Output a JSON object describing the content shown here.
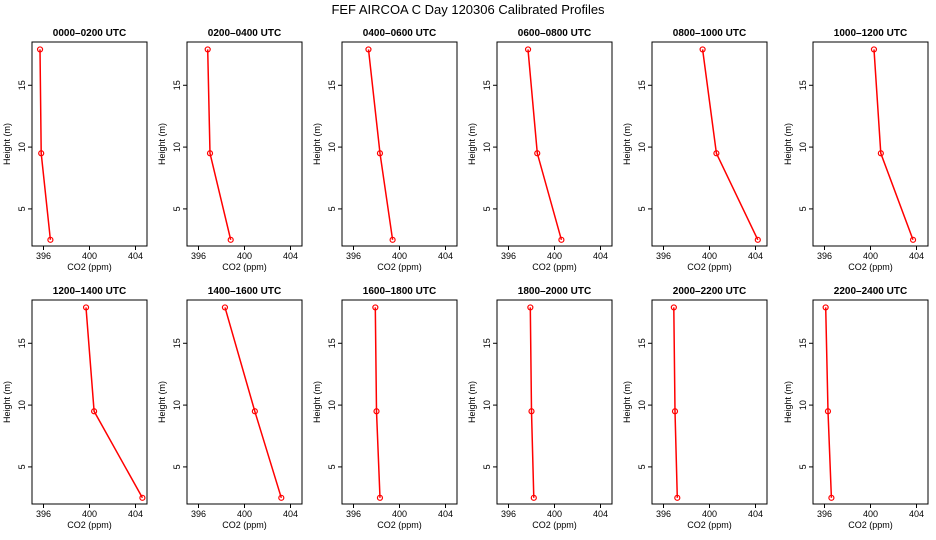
{
  "figure": {
    "title": "FEF AIRCOA C  Day 120306  Calibrated Profiles"
  },
  "chart_data": [
    {
      "type": "line",
      "title": "0000–0200 UTC",
      "xlabel": "CO2 (ppm)",
      "ylabel": "Height (m)",
      "xlim": [
        395,
        405
      ],
      "ylim": [
        2,
        18.5
      ],
      "xticks": [
        396,
        400,
        404
      ],
      "yticks": [
        5,
        10,
        15
      ],
      "x": [
        396.6,
        395.8,
        395.7
      ],
      "y": [
        2.5,
        9.5,
        17.9
      ]
    },
    {
      "type": "line",
      "title": "0200–0400 UTC",
      "xlabel": "CO2 (ppm)",
      "ylabel": "Height (m)",
      "xlim": [
        395,
        405
      ],
      "ylim": [
        2,
        18.5
      ],
      "xticks": [
        396,
        400,
        404
      ],
      "yticks": [
        5,
        10,
        15
      ],
      "x": [
        398.8,
        397.0,
        396.8
      ],
      "y": [
        2.5,
        9.5,
        17.9
      ]
    },
    {
      "type": "line",
      "title": "0400–0600 UTC",
      "xlabel": "CO2 (ppm)",
      "ylabel": "Height (m)",
      "xlim": [
        395,
        405
      ],
      "ylim": [
        2,
        18.5
      ],
      "xticks": [
        396,
        400,
        404
      ],
      "yticks": [
        5,
        10,
        15
      ],
      "x": [
        399.4,
        398.3,
        397.3
      ],
      "y": [
        2.5,
        9.5,
        17.9
      ]
    },
    {
      "type": "line",
      "title": "0600–0800 UTC",
      "xlabel": "CO2 (ppm)",
      "ylabel": "Height (m)",
      "xlim": [
        395,
        405
      ],
      "ylim": [
        2,
        18.5
      ],
      "xticks": [
        396,
        400,
        404
      ],
      "yticks": [
        5,
        10,
        15
      ],
      "x": [
        400.6,
        398.5,
        397.7
      ],
      "y": [
        2.5,
        9.5,
        17.9
      ]
    },
    {
      "type": "line",
      "title": "0800–1000 UTC",
      "xlabel": "CO2 (ppm)",
      "ylabel": "Height (m)",
      "xlim": [
        395,
        405
      ],
      "ylim": [
        2,
        18.5
      ],
      "xticks": [
        396,
        400,
        404
      ],
      "yticks": [
        5,
        10,
        15
      ],
      "x": [
        404.2,
        400.6,
        399.4
      ],
      "y": [
        2.5,
        9.5,
        17.9
      ]
    },
    {
      "type": "line",
      "title": "1000–1200 UTC",
      "xlabel": "CO2 (ppm)",
      "ylabel": "Height (m)",
      "xlim": [
        395,
        405
      ],
      "ylim": [
        2,
        18.5
      ],
      "xticks": [
        396,
        400,
        404
      ],
      "yticks": [
        5,
        10,
        15
      ],
      "x": [
        403.7,
        400.9,
        400.3
      ],
      "y": [
        2.5,
        9.5,
        17.9
      ]
    },
    {
      "type": "line",
      "title": "1200–1400 UTC",
      "xlabel": "CO2 (ppm)",
      "ylabel": "Height (m)",
      "xlim": [
        395,
        405
      ],
      "ylim": [
        2,
        18.5
      ],
      "xticks": [
        396,
        400,
        404
      ],
      "yticks": [
        5,
        10,
        15
      ],
      "x": [
        404.6,
        400.4,
        399.7
      ],
      "y": [
        2.5,
        9.5,
        17.9
      ]
    },
    {
      "type": "line",
      "title": "1400–1600 UTC",
      "xlabel": "CO2 (ppm)",
      "ylabel": "Height (m)",
      "xlim": [
        395,
        405
      ],
      "ylim": [
        2,
        18.5
      ],
      "xticks": [
        396,
        400,
        404
      ],
      "yticks": [
        5,
        10,
        15
      ],
      "x": [
        403.2,
        400.9,
        398.3
      ],
      "y": [
        2.5,
        9.5,
        17.9
      ]
    },
    {
      "type": "line",
      "title": "1600–1800 UTC",
      "xlabel": "CO2 (ppm)",
      "ylabel": "Height (m)",
      "xlim": [
        395,
        405
      ],
      "ylim": [
        2,
        18.5
      ],
      "xticks": [
        396,
        400,
        404
      ],
      "yticks": [
        5,
        10,
        15
      ],
      "x": [
        398.3,
        398.0,
        397.9
      ],
      "y": [
        2.5,
        9.5,
        17.9
      ]
    },
    {
      "type": "line",
      "title": "1800–2000 UTC",
      "xlabel": "CO2 (ppm)",
      "ylabel": "Height (m)",
      "xlim": [
        395,
        405
      ],
      "ylim": [
        2,
        18.5
      ],
      "xticks": [
        396,
        400,
        404
      ],
      "yticks": [
        5,
        10,
        15
      ],
      "x": [
        398.2,
        398.0,
        397.9
      ],
      "y": [
        2.5,
        9.5,
        17.9
      ]
    },
    {
      "type": "line",
      "title": "2000–2200 UTC",
      "xlabel": "CO2 (ppm)",
      "ylabel": "Height (m)",
      "xlim": [
        395,
        405
      ],
      "ylim": [
        2,
        18.5
      ],
      "xticks": [
        396,
        400,
        404
      ],
      "yticks": [
        5,
        10,
        15
      ],
      "x": [
        397.2,
        397.0,
        396.9
      ],
      "y": [
        2.5,
        9.5,
        17.9
      ]
    },
    {
      "type": "line",
      "title": "2200–2400 UTC",
      "xlabel": "CO2 (ppm)",
      "ylabel": "Height (m)",
      "xlim": [
        395,
        405
      ],
      "ylim": [
        2,
        18.5
      ],
      "xticks": [
        396,
        400,
        404
      ],
      "yticks": [
        5,
        10,
        15
      ],
      "x": [
        396.6,
        396.3,
        396.1
      ],
      "y": [
        2.5,
        9.5,
        17.9
      ]
    }
  ],
  "colors": {
    "series": "#ff0000",
    "axis": "#000000"
  }
}
